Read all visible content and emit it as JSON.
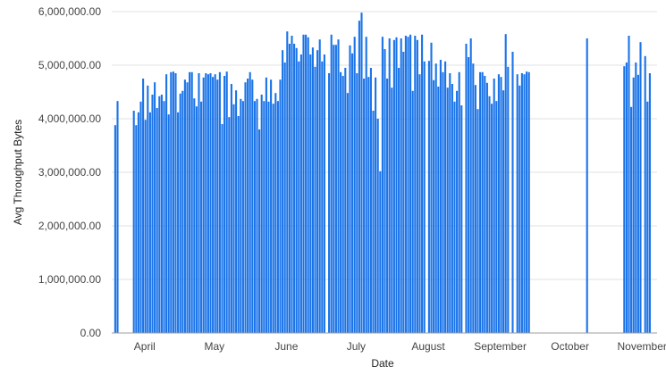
{
  "chart_data": {
    "type": "bar",
    "title": "",
    "xlabel": "Date",
    "ylabel": "Avg Throughput Bytes",
    "ylim": [
      0,
      6000000
    ],
    "yticks": [
      "0.00",
      "1,000,000.00",
      "2,000,000.00",
      "3,000,000.00",
      "4,000,000.00",
      "5,000,000.00",
      "6,000,000.00"
    ],
    "xticks": [
      "April",
      "May",
      "June",
      "July",
      "August",
      "September",
      "October",
      "November"
    ],
    "grid": true,
    "legend": "none",
    "bar_color": "#1a73e8",
    "x_unit": "day",
    "runs": [
      {
        "start": "Mar 19",
        "values": [
          3880000,
          4330000
        ]
      },
      {
        "start": "Mar 27",
        "values": [
          4150000,
          3880000,
          4120000,
          4320000,
          4750000,
          3980000,
          4620000,
          4120000,
          4450000,
          4680000,
          4200000,
          4420000,
          4450000,
          4330000,
          4830000,
          4080000,
          4870000,
          4880000,
          4850000,
          4120000,
          4470000,
          4520000,
          4730000,
          4680000,
          4870000,
          4870000,
          4380000,
          4230000,
          4850000,
          4320000,
          4770000,
          4850000,
          4830000,
          4850000,
          4780000,
          4830000,
          4730000,
          4870000,
          3900000,
          4800000,
          4880000,
          4030000,
          4650000,
          4270000,
          4530000,
          4050000,
          4370000,
          4330000,
          4680000,
          4750000,
          4870000,
          4730000,
          4330000,
          4370000,
          3800000,
          4450000,
          4330000,
          4770000,
          4320000,
          4730000,
          4280000,
          4480000,
          4330000,
          4730000,
          5280000,
          5050000,
          5630000,
          5400000,
          5550000,
          5400000,
          5320000,
          5070000,
          5200000,
          5570000,
          5570000,
          5520000,
          5200000,
          5330000,
          4970000,
          5280000,
          5480000,
          5070000,
          5200000
        ]
      },
      {
        "start": "Jun 19",
        "values": [
          4850000,
          5570000,
          5380000,
          5380000,
          5480000,
          4870000,
          4800000,
          4950000,
          4480000,
          5370000,
          5220000,
          5530000,
          4850000,
          5830000,
          5980000,
          4750000,
          5530000,
          4780000,
          4950000,
          4150000,
          4770000,
          4000000,
          3020000,
          5530000,
          5300000,
          4750000,
          5500000,
          4580000,
          5470000,
          5520000,
          4950000,
          5500000,
          5250000,
          5550000,
          5530000,
          5570000,
          4520000,
          5550000,
          5470000,
          4830000,
          5570000,
          5070000
        ]
      },
      {
        "start": "Aug 1",
        "values": [
          5080000,
          5420000,
          4720000,
          5030000,
          4600000,
          5100000,
          4870000,
          5070000,
          4580000,
          4850000,
          4650000,
          4320000,
          4520000,
          4870000,
          4250000
        ]
      },
      {
        "start": "Aug 17",
        "values": [
          5400000,
          5150000,
          5500000,
          5030000,
          4630000,
          4180000,
          4870000,
          4870000,
          4800000,
          4670000,
          4420000,
          4280000,
          4750000,
          4330000,
          4830000,
          4780000,
          4530000,
          5580000,
          4970000
        ]
      },
      {
        "start": "Sep 6",
        "values": [
          5250000
        ]
      },
      {
        "start": "Sep 8",
        "values": [
          4830000,
          4620000,
          4850000,
          4830000,
          4880000,
          4870000
        ]
      },
      {
        "start": "Oct 8",
        "values": [
          5500000
        ]
      },
      {
        "start": "Oct 24",
        "values": [
          4980000,
          5050000,
          5550000,
          4220000,
          4770000,
          5050000,
          4820000,
          5430000
        ]
      },
      {
        "start": "Nov 2",
        "values": [
          5170000,
          4320000,
          4850000
        ]
      }
    ]
  }
}
